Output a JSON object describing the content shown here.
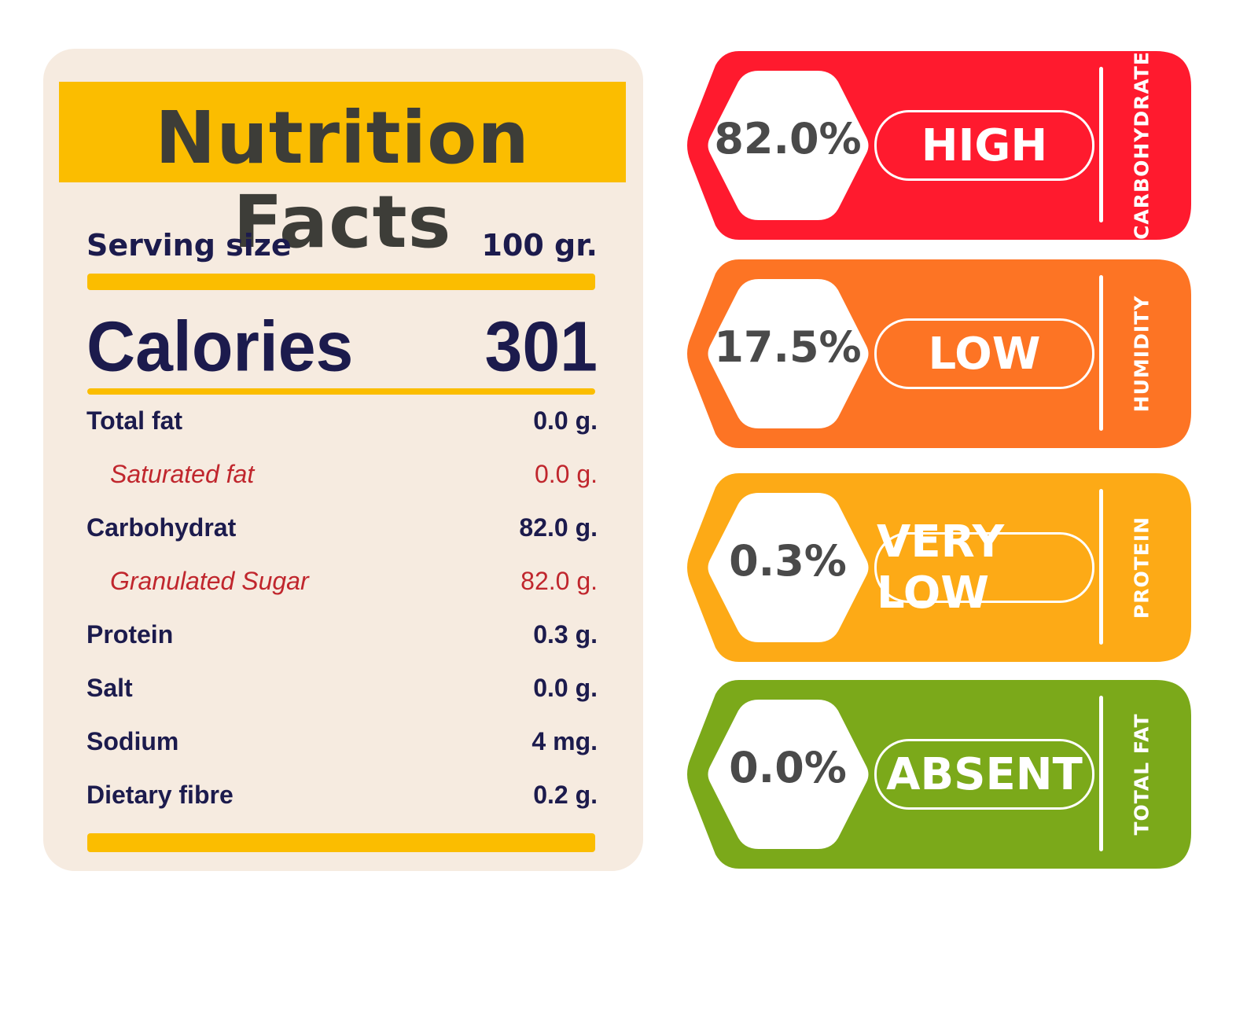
{
  "label": {
    "title": "Nutrition Facts",
    "serving_label": "Serving size",
    "serving_value": "100 gr.",
    "calories_label": "Calories",
    "calories_value": "301",
    "nutrients": [
      {
        "name": "Total fat",
        "value": "0.0 g.",
        "sub": false
      },
      {
        "name": "Saturated fat",
        "value": "0.0 g.",
        "sub": true
      },
      {
        "name": "Carbohydrat",
        "value": "82.0 g.",
        "sub": false
      },
      {
        "name": "Granulated Sugar",
        "value": "82.0 g.",
        "sub": true
      },
      {
        "name": "Protein",
        "value": "0.3 g.",
        "sub": false
      },
      {
        "name": "Salt",
        "value": "0.0 g.",
        "sub": false
      },
      {
        "name": "Sodium",
        "value": "4 mg.",
        "sub": false
      },
      {
        "name": "Dietary fibre",
        "value": "0.2 g.",
        "sub": false
      }
    ],
    "colors": {
      "accent": "#fbbd00",
      "panel": "#f6ebe0",
      "text": "#1c1b4d",
      "sub_text": "#c0262d"
    }
  },
  "tags": [
    {
      "percent": "82.0%",
      "level": "HIGH",
      "nutrient": "CARBOHYDRATE",
      "color": "#ff1a2e"
    },
    {
      "percent": "17.5%",
      "level": "LOW",
      "nutrient": "HUMIDITY",
      "color": "#fd7424"
    },
    {
      "percent": "0.3%",
      "level": "VERY LOW",
      "nutrient": "PROTEIN",
      "color": "#fdaa16"
    },
    {
      "percent": "0.0%",
      "level": "ABSENT",
      "nutrient": "TOTAL FAT",
      "color": "#7ba91a"
    }
  ]
}
